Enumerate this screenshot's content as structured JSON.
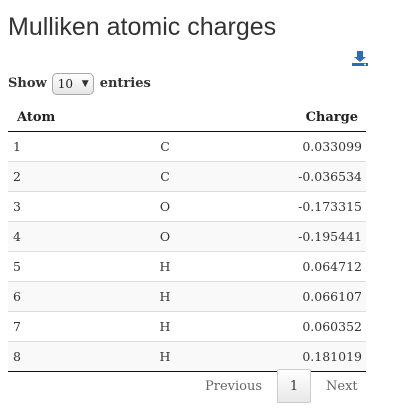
{
  "page": {
    "title": "Mulliken atomic charges"
  },
  "toolbar": {
    "download_icon": "download-icon",
    "accent_color": "#2a6ebb"
  },
  "length": {
    "show_label": "Show",
    "selected": "10",
    "entries_label": "entries"
  },
  "table": {
    "headers": {
      "atom": "Atom",
      "element": "",
      "charge": "Charge"
    },
    "rows": [
      {
        "atom": "1",
        "element": "C",
        "charge": "0.033099"
      },
      {
        "atom": "2",
        "element": "C",
        "charge": "-0.036534"
      },
      {
        "atom": "3",
        "element": "O",
        "charge": "-0.173315"
      },
      {
        "atom": "4",
        "element": "O",
        "charge": "-0.195441"
      },
      {
        "atom": "5",
        "element": "H",
        "charge": "0.064712"
      },
      {
        "atom": "6",
        "element": "H",
        "charge": "0.066107"
      },
      {
        "atom": "7",
        "element": "H",
        "charge": "0.060352"
      },
      {
        "atom": "8",
        "element": "H",
        "charge": "0.181019"
      }
    ]
  },
  "pagination": {
    "previous": "Previous",
    "current": "1",
    "next": "Next"
  }
}
